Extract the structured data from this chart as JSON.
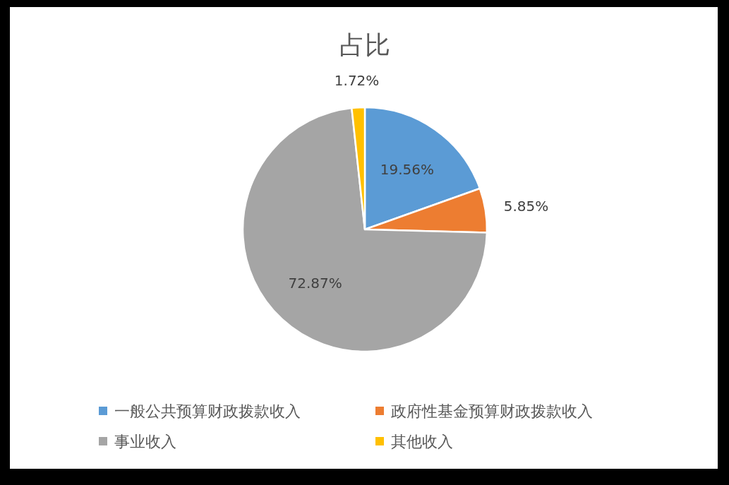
{
  "chart_data": {
    "type": "pie",
    "title": "占比",
    "categories": [
      "一般公共预算财政拨款收入",
      "政府性基金预算财政拨款收入",
      "事业收入",
      "其他收入"
    ],
    "values": [
      19.56,
      5.85,
      72.87,
      1.72
    ],
    "colors": [
      "#5b9bd5",
      "#ed7d31",
      "#a5a5a5",
      "#ffc000"
    ],
    "value_labels": [
      "19.56%",
      "5.85%",
      "72.87%",
      "1.72%"
    ],
    "legend": "bottom"
  }
}
